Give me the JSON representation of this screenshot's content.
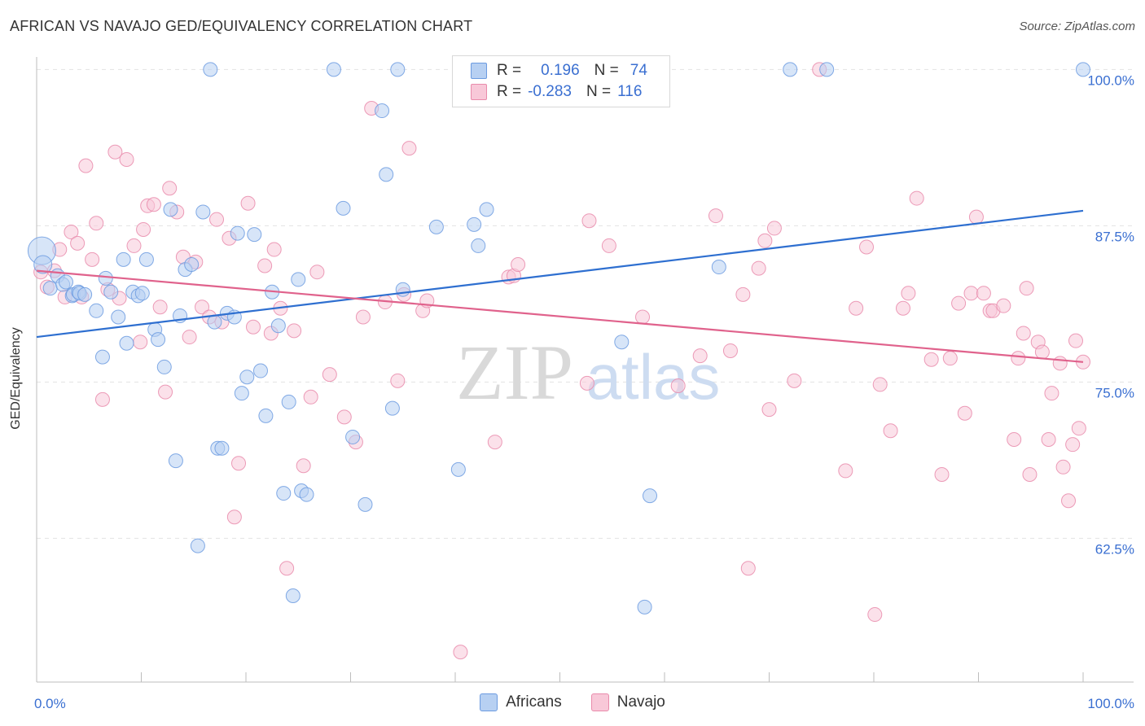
{
  "title": "AFRICAN VS NAVAJO GED/EQUIVALENCY CORRELATION CHART",
  "source": "Source: ZipAtlas.com",
  "watermark": {
    "zip": "ZIP",
    "atlas": "atlas"
  },
  "legend": {
    "series": [
      {
        "r_label": "R =",
        "r_value": "0.196",
        "n_label": "N =",
        "n_value": "74"
      },
      {
        "r_label": "R =",
        "r_value": "-0.283",
        "n_label": "N =",
        "n_value": "116"
      }
    ]
  },
  "chart_data": {
    "type": "scatter",
    "title": "AFRICAN VS NAVAJO GED/EQUIVALENCY CORRELATION CHART",
    "xlabel": "",
    "ylabel": "GED/Equivalency",
    "xlim": [
      0,
      100
    ],
    "ylim": [
      51,
      101
    ],
    "x_tick_labels": [
      "0.0%",
      "100.0%"
    ],
    "y_ticks": [
      {
        "value": 62.5,
        "label": "62.5%"
      },
      {
        "value": 75.0,
        "label": "75.0%"
      },
      {
        "value": 87.5,
        "label": "87.5%"
      },
      {
        "value": 100.0,
        "label": "100.0%"
      }
    ],
    "grid": true,
    "legend_position": "bottom-center",
    "series": [
      {
        "name": "Africans",
        "color": "#6c9be0",
        "fill": "#b7d0f2",
        "trend": {
          "x": [
            0,
            100
          ],
          "y": [
            78.6,
            88.7
          ]
        },
        "points": [
          [
            0.5,
            85.5
          ],
          [
            0.6,
            84.4
          ],
          [
            1.3,
            82.5
          ],
          [
            2.0,
            83.5
          ],
          [
            2.5,
            82.8
          ],
          [
            2.8,
            83.0
          ],
          [
            3.4,
            81.9
          ],
          [
            3.5,
            82.0
          ],
          [
            4.0,
            82.2
          ],
          [
            4.1,
            82.1
          ],
          [
            4.6,
            82.0
          ],
          [
            5.7,
            80.7
          ],
          [
            6.3,
            77.0
          ],
          [
            6.6,
            83.3
          ],
          [
            7.1,
            82.2
          ],
          [
            7.8,
            80.2
          ],
          [
            8.3,
            84.8
          ],
          [
            8.6,
            78.1
          ],
          [
            9.2,
            82.2
          ],
          [
            9.7,
            81.9
          ],
          [
            10.1,
            82.1
          ],
          [
            10.5,
            84.8
          ],
          [
            11.3,
            79.2
          ],
          [
            11.6,
            78.4
          ],
          [
            12.2,
            76.2
          ],
          [
            12.8,
            88.8
          ],
          [
            13.3,
            68.7
          ],
          [
            13.7,
            80.3
          ],
          [
            14.2,
            84.0
          ],
          [
            14.8,
            84.4
          ],
          [
            15.4,
            61.9
          ],
          [
            15.9,
            88.6
          ],
          [
            16.6,
            100.0
          ],
          [
            17.0,
            79.8
          ],
          [
            17.3,
            69.7
          ],
          [
            17.7,
            69.7
          ],
          [
            18.2,
            80.5
          ],
          [
            18.9,
            80.2
          ],
          [
            19.2,
            86.9
          ],
          [
            19.6,
            74.1
          ],
          [
            20.1,
            75.4
          ],
          [
            20.8,
            86.8
          ],
          [
            21.4,
            75.9
          ],
          [
            21.9,
            72.3
          ],
          [
            22.5,
            82.2
          ],
          [
            23.1,
            79.5
          ],
          [
            23.6,
            66.1
          ],
          [
            24.1,
            73.4
          ],
          [
            24.5,
            57.9
          ],
          [
            25.0,
            83.2
          ],
          [
            25.3,
            66.3
          ],
          [
            25.8,
            66.0
          ],
          [
            28.4,
            100.0
          ],
          [
            29.3,
            88.9
          ],
          [
            30.2,
            70.6
          ],
          [
            31.4,
            65.2
          ],
          [
            33.0,
            96.7
          ],
          [
            33.4,
            91.6
          ],
          [
            34.0,
            72.9
          ],
          [
            34.5,
            100.0
          ],
          [
            35.0,
            82.4
          ],
          [
            38.2,
            87.4
          ],
          [
            40.3,
            68.0
          ],
          [
            41.8,
            87.6
          ],
          [
            42.2,
            85.9
          ],
          [
            43.0,
            88.8
          ],
          [
            52.2,
            100.0
          ],
          [
            55.9,
            78.2
          ],
          [
            58.1,
            57.0
          ],
          [
            58.6,
            65.9
          ],
          [
            65.2,
            84.2
          ],
          [
            72.0,
            100.0
          ],
          [
            75.5,
            100.0
          ],
          [
            100.0,
            100.0
          ]
        ]
      },
      {
        "name": "Navajo",
        "color": "#e98bab",
        "fill": "#f8c8d8",
        "trend": {
          "x": [
            0,
            100
          ],
          "y": [
            83.9,
            76.6
          ]
        },
        "points": [
          [
            0.4,
            83.8
          ],
          [
            1.0,
            82.6
          ],
          [
            1.7,
            83.9
          ],
          [
            2.2,
            85.6
          ],
          [
            2.7,
            81.8
          ],
          [
            3.3,
            87.0
          ],
          [
            3.9,
            86.1
          ],
          [
            4.3,
            81.8
          ],
          [
            4.7,
            92.3
          ],
          [
            5.3,
            84.8
          ],
          [
            5.7,
            87.7
          ],
          [
            6.3,
            73.6
          ],
          [
            6.8,
            82.4
          ],
          [
            7.5,
            93.4
          ],
          [
            7.9,
            81.7
          ],
          [
            8.6,
            92.8
          ],
          [
            9.3,
            85.9
          ],
          [
            9.9,
            78.2
          ],
          [
            10.2,
            87.2
          ],
          [
            10.6,
            89.1
          ],
          [
            11.2,
            89.2
          ],
          [
            11.8,
            81.0
          ],
          [
            12.3,
            74.2
          ],
          [
            12.7,
            90.5
          ],
          [
            13.4,
            88.6
          ],
          [
            14.0,
            85.0
          ],
          [
            14.6,
            78.6
          ],
          [
            15.2,
            84.6
          ],
          [
            15.8,
            81.0
          ],
          [
            16.5,
            80.2
          ],
          [
            17.2,
            88.0
          ],
          [
            17.7,
            79.8
          ],
          [
            18.4,
            86.5
          ],
          [
            18.9,
            64.2
          ],
          [
            19.3,
            68.5
          ],
          [
            20.2,
            89.3
          ],
          [
            20.7,
            79.4
          ],
          [
            21.8,
            84.3
          ],
          [
            22.4,
            78.9
          ],
          [
            22.7,
            85.6
          ],
          [
            23.3,
            80.9
          ],
          [
            23.9,
            60.1
          ],
          [
            24.6,
            79.1
          ],
          [
            25.5,
            68.3
          ],
          [
            26.2,
            73.8
          ],
          [
            26.8,
            83.8
          ],
          [
            28.0,
            75.6
          ],
          [
            29.4,
            72.2
          ],
          [
            30.5,
            70.2
          ],
          [
            31.2,
            80.2
          ],
          [
            32.0,
            96.9
          ],
          [
            33.3,
            81.4
          ],
          [
            34.5,
            75.1
          ],
          [
            35.1,
            82.0
          ],
          [
            35.6,
            93.7
          ],
          [
            36.9,
            80.7
          ],
          [
            37.3,
            81.5
          ],
          [
            40.5,
            53.4
          ],
          [
            43.8,
            70.2
          ],
          [
            45.1,
            83.4
          ],
          [
            45.6,
            83.5
          ],
          [
            46.0,
            84.4
          ],
          [
            52.6,
            74.9
          ],
          [
            52.8,
            87.9
          ],
          [
            54.7,
            85.9
          ],
          [
            57.9,
            80.2
          ],
          [
            59.1,
            99.7
          ],
          [
            59.5,
            100.0
          ],
          [
            61.3,
            74.7
          ],
          [
            63.4,
            77.1
          ],
          [
            64.9,
            88.3
          ],
          [
            66.3,
            77.5
          ],
          [
            67.5,
            82.0
          ],
          [
            68.0,
            60.1
          ],
          [
            69.0,
            84.1
          ],
          [
            69.6,
            86.3
          ],
          [
            70.0,
            72.8
          ],
          [
            70.5,
            87.3
          ],
          [
            72.4,
            75.1
          ],
          [
            74.8,
            100.0
          ],
          [
            77.3,
            67.9
          ],
          [
            78.3,
            80.9
          ],
          [
            79.3,
            85.8
          ],
          [
            80.1,
            56.4
          ],
          [
            80.6,
            74.8
          ],
          [
            81.6,
            71.1
          ],
          [
            82.8,
            80.9
          ],
          [
            83.3,
            82.1
          ],
          [
            84.1,
            89.7
          ],
          [
            85.5,
            76.8
          ],
          [
            86.5,
            67.6
          ],
          [
            87.3,
            76.9
          ],
          [
            88.1,
            81.3
          ],
          [
            88.7,
            72.5
          ],
          [
            89.3,
            82.1
          ],
          [
            89.8,
            88.2
          ],
          [
            90.5,
            82.1
          ],
          [
            91.1,
            80.7
          ],
          [
            91.4,
            80.7
          ],
          [
            92.4,
            81.1
          ],
          [
            93.4,
            70.4
          ],
          [
            93.8,
            76.9
          ],
          [
            94.3,
            78.9
          ],
          [
            94.6,
            82.5
          ],
          [
            94.9,
            67.6
          ],
          [
            95.7,
            78.2
          ],
          [
            96.1,
            77.4
          ],
          [
            96.7,
            70.4
          ],
          [
            97.0,
            74.1
          ],
          [
            97.8,
            76.5
          ],
          [
            98.1,
            68.2
          ],
          [
            98.6,
            65.5
          ],
          [
            99.3,
            78.3
          ],
          [
            99.6,
            71.3
          ],
          [
            100.0,
            76.6
          ],
          [
            99.0,
            70.0
          ]
        ]
      }
    ]
  }
}
